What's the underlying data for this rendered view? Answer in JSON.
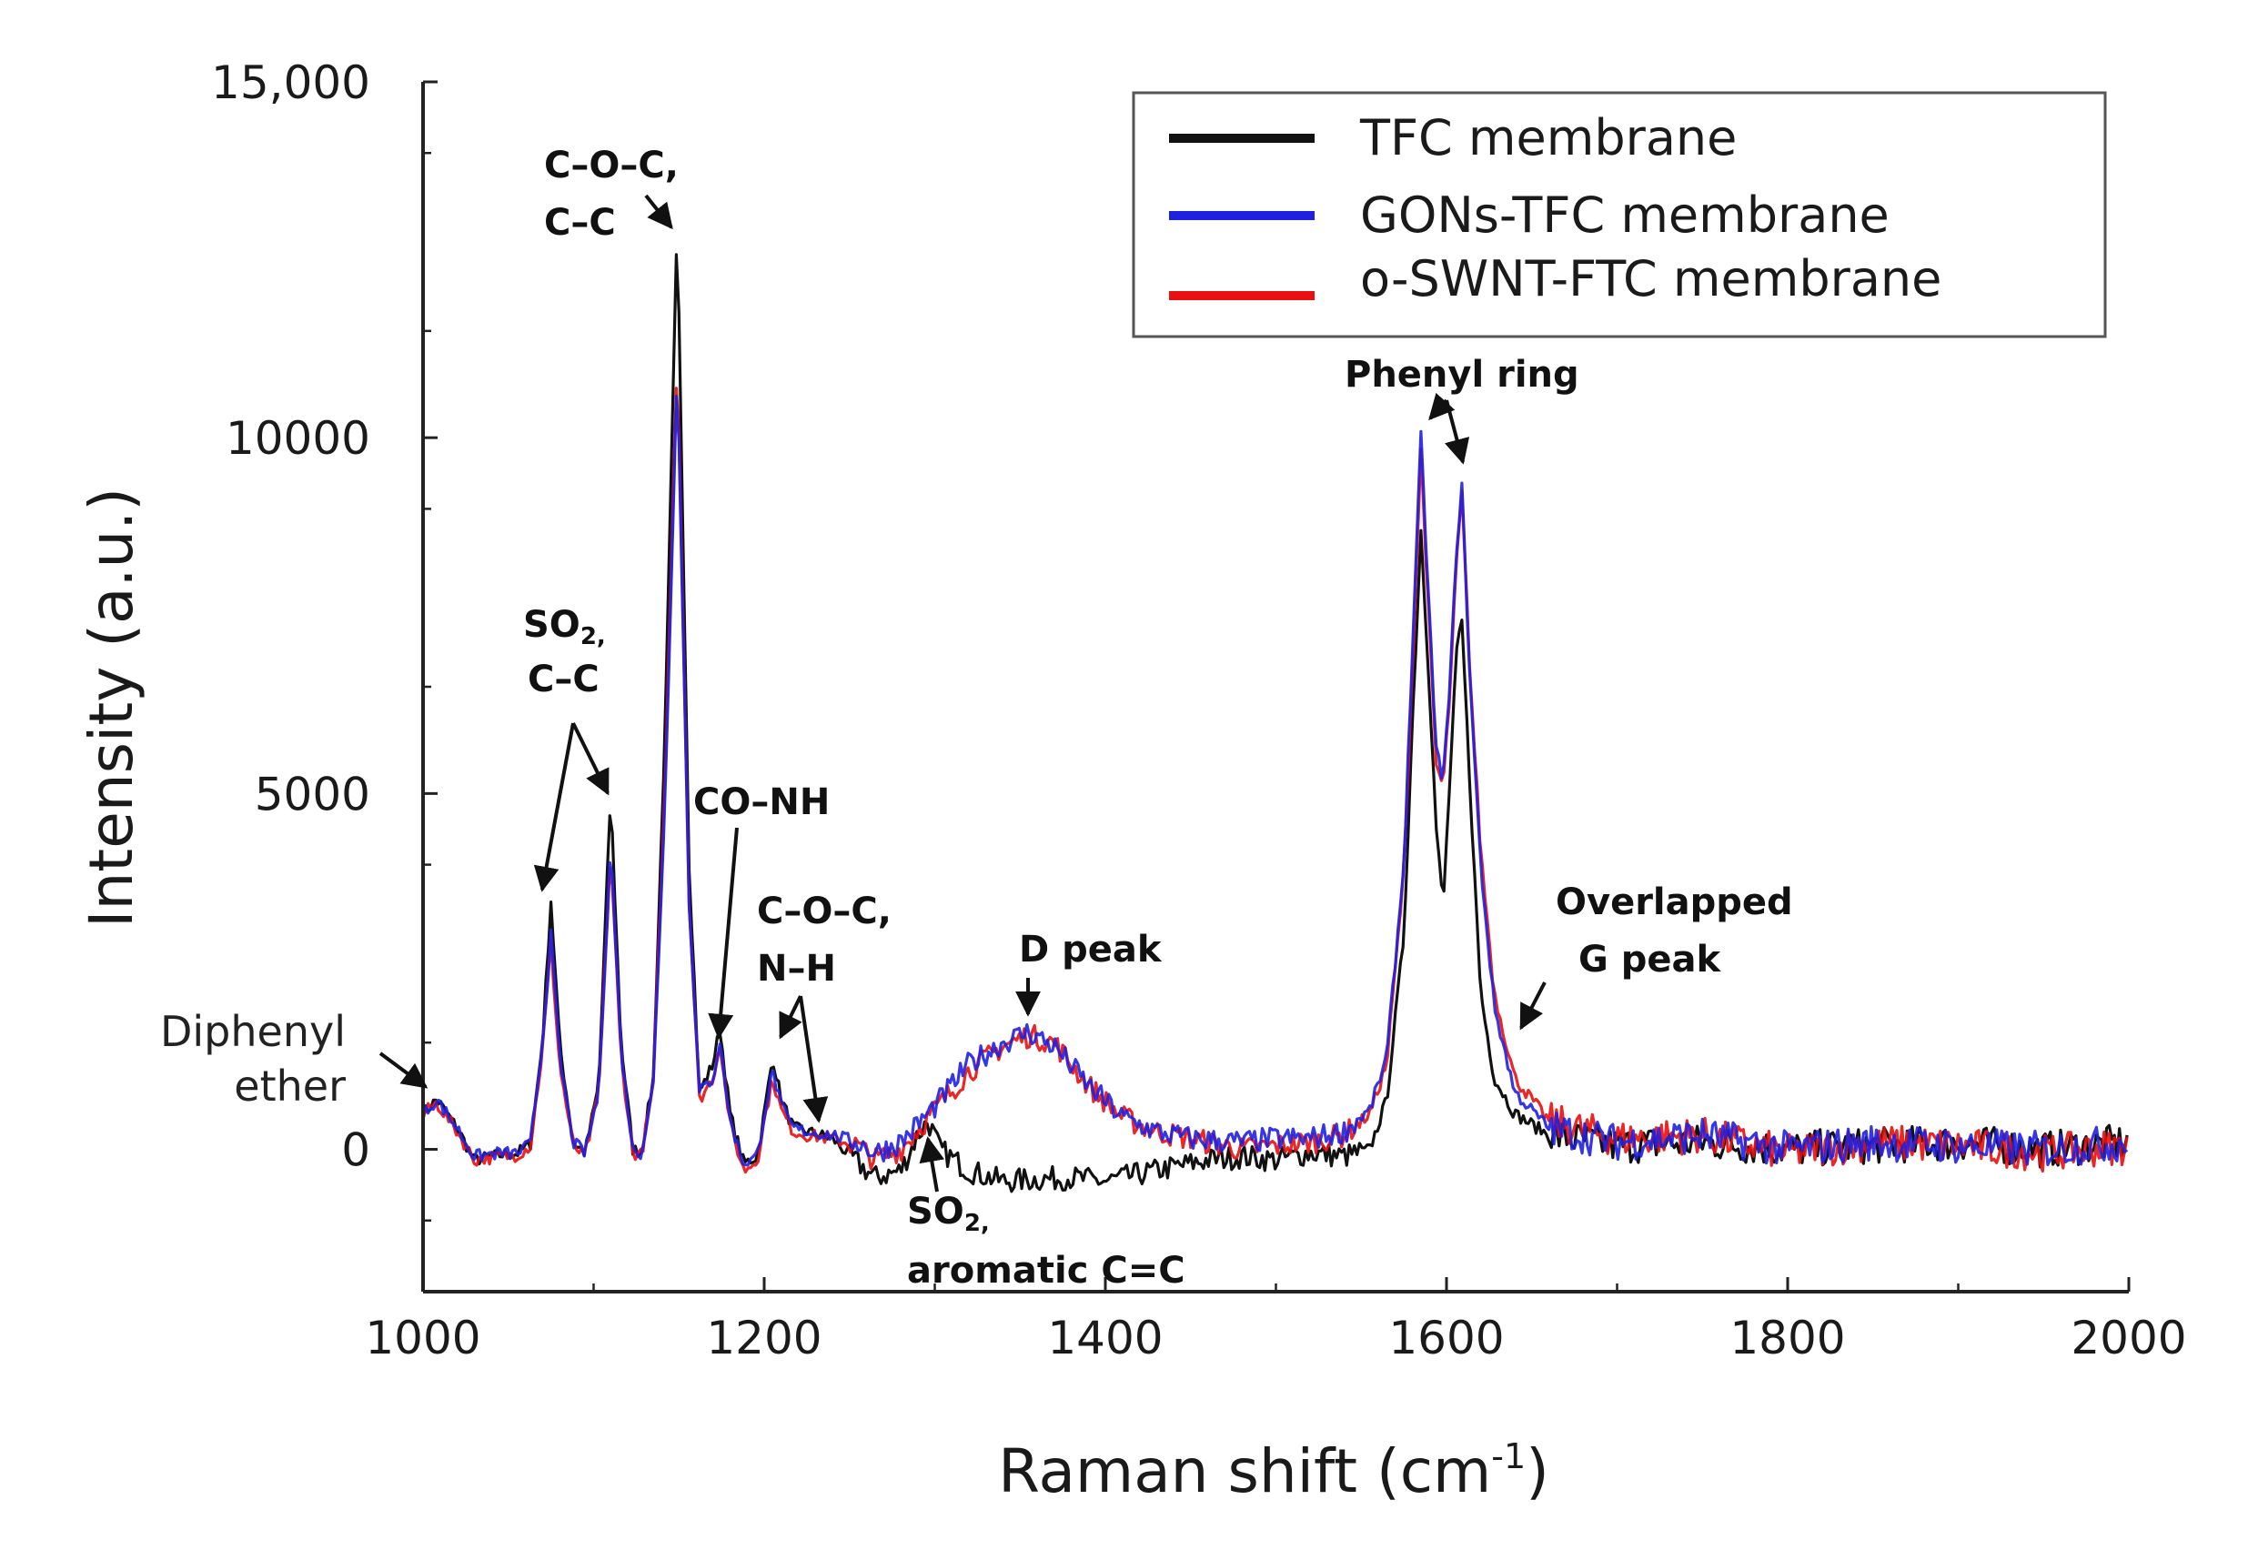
{
  "chart_data": {
    "type": "line",
    "xlabel": "Raman shift (cm",
    "xlabel_sup": "-1",
    "xlabel_close": ")",
    "ylabel": "Intensity (a.u.)",
    "xlim": [
      1000,
      2000
    ],
    "ylim": [
      -2000,
      15000
    ],
    "x_ticks": [
      1000,
      1200,
      1400,
      1600,
      1800,
      2000
    ],
    "x_tick_labels": [
      "1000",
      "1200",
      "1400",
      "1600",
      "1800",
      "2000"
    ],
    "y_ticks": [
      0,
      5000,
      10000,
      15000
    ],
    "y_tick_labels": [
      "0",
      "5000",
      "10000",
      "15,000"
    ],
    "legend_position": "top-right",
    "series": [
      {
        "name": "TFC membrane",
        "color": "#111111",
        "points": [
          [
            1000,
            500
          ],
          [
            1008,
            700
          ],
          [
            1020,
            300
          ],
          [
            1030,
            -150
          ],
          [
            1045,
            -80
          ],
          [
            1055,
            -60
          ],
          [
            1063,
            80
          ],
          [
            1070,
            1500
          ],
          [
            1075,
            3500
          ],
          [
            1080,
            1500
          ],
          [
            1088,
            100
          ],
          [
            1095,
            -50
          ],
          [
            1103,
            900
          ],
          [
            1110,
            5000
          ],
          [
            1116,
            1500
          ],
          [
            1123,
            0
          ],
          [
            1128,
            -40
          ],
          [
            1135,
            1000
          ],
          [
            1142,
            6000
          ],
          [
            1149,
            13000
          ],
          [
            1156,
            4000
          ],
          [
            1162,
            800
          ],
          [
            1170,
            1200
          ],
          [
            1174,
            1700
          ],
          [
            1180,
            500
          ],
          [
            1188,
            -200
          ],
          [
            1196,
            -100
          ],
          [
            1200,
            500
          ],
          [
            1205,
            1300
          ],
          [
            1210,
            700
          ],
          [
            1217,
            300
          ],
          [
            1225,
            250
          ],
          [
            1240,
            150
          ],
          [
            1255,
            -200
          ],
          [
            1265,
            -400
          ],
          [
            1280,
            -300
          ],
          [
            1290,
            200
          ],
          [
            1296,
            400
          ],
          [
            1303,
            0
          ],
          [
            1320,
            -300
          ],
          [
            1340,
            -450
          ],
          [
            1360,
            -420
          ],
          [
            1380,
            -400
          ],
          [
            1400,
            -450
          ],
          [
            1420,
            -350
          ],
          [
            1440,
            -250
          ],
          [
            1460,
            -150
          ],
          [
            1480,
            -100
          ],
          [
            1500,
            -150
          ],
          [
            1520,
            -50
          ],
          [
            1540,
            -100
          ],
          [
            1555,
            0
          ],
          [
            1565,
            700
          ],
          [
            1575,
            3000
          ],
          [
            1580,
            6000
          ],
          [
            1585,
            8700
          ],
          [
            1590,
            6500
          ],
          [
            1594,
            4500
          ],
          [
            1598,
            3400
          ],
          [
            1602,
            5200
          ],
          [
            1606,
            7000
          ],
          [
            1609,
            7400
          ],
          [
            1614,
            5000
          ],
          [
            1620,
            2200
          ],
          [
            1628,
            1000
          ],
          [
            1640,
            500
          ],
          [
            1660,
            200
          ],
          [
            1700,
            50
          ],
          [
            1750,
            100
          ],
          [
            1800,
            0
          ],
          [
            1850,
            50
          ],
          [
            1900,
            100
          ],
          [
            1950,
            0
          ],
          [
            2000,
            100
          ]
        ]
      },
      {
        "name": "GONs-TFC membrane",
        "color": "#2020e0",
        "points": [
          [
            1000,
            500
          ],
          [
            1008,
            700
          ],
          [
            1020,
            300
          ],
          [
            1030,
            -100
          ],
          [
            1045,
            -50
          ],
          [
            1055,
            -60
          ],
          [
            1063,
            80
          ],
          [
            1070,
            1500
          ],
          [
            1075,
            3000
          ],
          [
            1080,
            1300
          ],
          [
            1088,
            100
          ],
          [
            1095,
            -50
          ],
          [
            1103,
            800
          ],
          [
            1110,
            4300
          ],
          [
            1116,
            1400
          ],
          [
            1123,
            0
          ],
          [
            1128,
            -50
          ],
          [
            1135,
            900
          ],
          [
            1142,
            5000
          ],
          [
            1149,
            11000
          ],
          [
            1156,
            3500
          ],
          [
            1162,
            800
          ],
          [
            1170,
            1000
          ],
          [
            1174,
            1500
          ],
          [
            1180,
            400
          ],
          [
            1188,
            -200
          ],
          [
            1196,
            -100
          ],
          [
            1200,
            500
          ],
          [
            1205,
            1100
          ],
          [
            1210,
            600
          ],
          [
            1217,
            300
          ],
          [
            1225,
            250
          ],
          [
            1240,
            200
          ],
          [
            1255,
            100
          ],
          [
            1265,
            -50
          ],
          [
            1280,
            100
          ],
          [
            1300,
            600
          ],
          [
            1320,
            1200
          ],
          [
            1340,
            1500
          ],
          [
            1355,
            1650
          ],
          [
            1370,
            1450
          ],
          [
            1390,
            900
          ],
          [
            1410,
            450
          ],
          [
            1430,
            250
          ],
          [
            1450,
            150
          ],
          [
            1480,
            100
          ],
          [
            1500,
            150
          ],
          [
            1520,
            150
          ],
          [
            1540,
            250
          ],
          [
            1555,
            550
          ],
          [
            1565,
            1300
          ],
          [
            1575,
            4000
          ],
          [
            1580,
            7000
          ],
          [
            1585,
            10000
          ],
          [
            1590,
            7500
          ],
          [
            1594,
            5600
          ],
          [
            1598,
            5200
          ],
          [
            1602,
            6500
          ],
          [
            1606,
            8500
          ],
          [
            1609,
            9300
          ],
          [
            1614,
            6500
          ],
          [
            1620,
            4000
          ],
          [
            1628,
            2000
          ],
          [
            1640,
            800
          ],
          [
            1660,
            300
          ],
          [
            1700,
            100
          ],
          [
            1750,
            200
          ],
          [
            1800,
            0
          ],
          [
            1850,
            100
          ],
          [
            1900,
            50
          ],
          [
            1950,
            0
          ],
          [
            2000,
            100
          ]
        ]
      },
      {
        "name": "o-SWNT-FTC membrane",
        "color": "#e81010",
        "points": [
          [
            1000,
            500
          ],
          [
            1008,
            650
          ],
          [
            1020,
            250
          ],
          [
            1030,
            -150
          ],
          [
            1045,
            -100
          ],
          [
            1055,
            -80
          ],
          [
            1063,
            50
          ],
          [
            1070,
            1400
          ],
          [
            1075,
            2900
          ],
          [
            1080,
            1200
          ],
          [
            1088,
            50
          ],
          [
            1095,
            -100
          ],
          [
            1103,
            800
          ],
          [
            1110,
            4200
          ],
          [
            1116,
            1300
          ],
          [
            1123,
            -50
          ],
          [
            1128,
            -80
          ],
          [
            1135,
            900
          ],
          [
            1142,
            5200
          ],
          [
            1149,
            11200
          ],
          [
            1156,
            3500
          ],
          [
            1162,
            700
          ],
          [
            1170,
            1000
          ],
          [
            1174,
            1500
          ],
          [
            1180,
            350
          ],
          [
            1188,
            -300
          ],
          [
            1196,
            -150
          ],
          [
            1200,
            400
          ],
          [
            1205,
            1000
          ],
          [
            1210,
            550
          ],
          [
            1217,
            250
          ],
          [
            1225,
            200
          ],
          [
            1240,
            150
          ],
          [
            1255,
            50
          ],
          [
            1265,
            -150
          ],
          [
            1280,
            0
          ],
          [
            1300,
            550
          ],
          [
            1320,
            1100
          ],
          [
            1340,
            1450
          ],
          [
            1355,
            1600
          ],
          [
            1370,
            1500
          ],
          [
            1390,
            900
          ],
          [
            1410,
            450
          ],
          [
            1430,
            250
          ],
          [
            1450,
            150
          ],
          [
            1480,
            0
          ],
          [
            1500,
            50
          ],
          [
            1520,
            100
          ],
          [
            1540,
            200
          ],
          [
            1555,
            500
          ],
          [
            1565,
            1200
          ],
          [
            1575,
            3900
          ],
          [
            1580,
            6800
          ],
          [
            1585,
            9800
          ],
          [
            1590,
            7300
          ],
          [
            1594,
            5400
          ],
          [
            1598,
            5100
          ],
          [
            1602,
            6400
          ],
          [
            1606,
            8300
          ],
          [
            1609,
            9200
          ],
          [
            1614,
            6600
          ],
          [
            1620,
            4200
          ],
          [
            1628,
            2200
          ],
          [
            1640,
            1000
          ],
          [
            1660,
            400
          ],
          [
            1700,
            150
          ],
          [
            1750,
            200
          ],
          [
            1800,
            -50
          ],
          [
            1850,
            100
          ],
          [
            1900,
            50
          ],
          [
            1950,
            -50
          ],
          [
            2000,
            50
          ]
        ]
      }
    ],
    "annotations": [
      {
        "label": "Diphenyl",
        "label2": "ether",
        "style": "regular",
        "target": [
          1003,
          900
        ]
      },
      {
        "label": "SO",
        "sub": "2,",
        "label2": "C–C",
        "style": "bold",
        "targets": [
          [
            1075,
            3700
          ],
          [
            1110,
            5300
          ]
        ]
      },
      {
        "label": "C–O–C,",
        "label2": "C–C",
        "style": "bold",
        "target": [
          1149,
          13100
        ]
      },
      {
        "label": "CO–NH",
        "style": "bold",
        "target": [
          1174,
          1800
        ]
      },
      {
        "label": "C–O–C,",
        "label2": "N–H",
        "style": "bold",
        "targets": [
          [
            1205,
            1600
          ],
          [
            1229,
            500
          ]
        ]
      },
      {
        "label": "D peak",
        "style": "bold",
        "target": [
          1352,
          1900
        ]
      },
      {
        "label": "SO",
        "sub": "2,",
        "label2": "aromatic C=C",
        "style": "bold",
        "target": [
          1297,
          450
        ]
      },
      {
        "label": "Phenyl ring",
        "style": "bold",
        "targets": [
          [
            1586,
            10400
          ],
          [
            1606,
            9600
          ]
        ]
      },
      {
        "label": "Overlapped",
        "label2": "G peak",
        "style": "bold",
        "target": [
          1640,
          1800
        ]
      }
    ]
  }
}
